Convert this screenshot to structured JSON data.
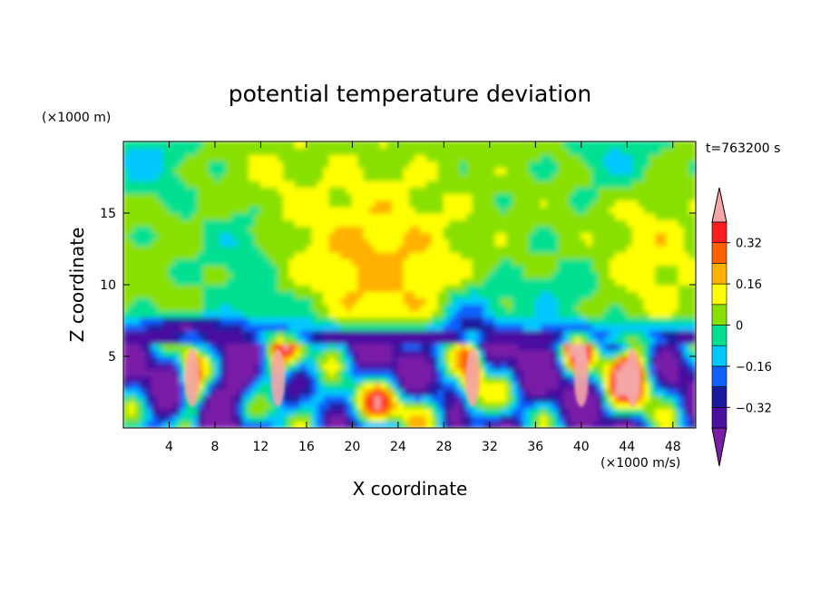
{
  "chart_data": {
    "type": "heatmap",
    "title": "potential temperature deviation",
    "xlabel": "X coordinate",
    "ylabel": "Z coordinate",
    "x_unit": "(×1000 m/s)",
    "y_unit": "(×1000 m)",
    "time_label": "t=763200 s",
    "xlim": [
      0,
      50
    ],
    "ylim": [
      0,
      20
    ],
    "x_ticks": [
      4,
      8,
      12,
      16,
      20,
      24,
      28,
      32,
      36,
      40,
      44,
      48
    ],
    "y_ticks": [
      5,
      10,
      15
    ],
    "colorbar": {
      "levels": [
        -0.4,
        -0.32,
        -0.24,
        -0.16,
        -0.08,
        0,
        0.08,
        0.16,
        0.24,
        0.32,
        0.4
      ],
      "tick_labels": [
        "0.32",
        "0.16",
        "0",
        "−0.16",
        "−0.32"
      ],
      "tick_values": [
        0.32,
        0.16,
        0,
        -0.16,
        -0.32
      ],
      "colors": {
        "below": "#7a1ea8",
        "bands": [
          "#4a0fa0",
          "#1a1aa0",
          "#1060ff",
          "#00c8ff",
          "#00e090",
          "#88e000",
          "#ffff00",
          "#ffb000",
          "#ff6000",
          "#ff1e1e"
        ],
        "above": "#f5a6a6"
      },
      "extend": "both"
    },
    "structure": {
      "inversion_height": 6.8,
      "upper_layer": "mostly near 0 to +0.16 (green/yellow), cyan patches -0.08 aloft",
      "lower_layer": "strong alternating anomalies -0.4 to +0.4 below ~6.8",
      "warm_plumes_x": [
        6,
        13.5,
        30.5,
        40,
        44.5
      ],
      "warm_dome_top": {
        "x": 22,
        "z": 15
      },
      "cold_dome_top": {
        "x": 30.5,
        "z": 9.5
      }
    }
  }
}
